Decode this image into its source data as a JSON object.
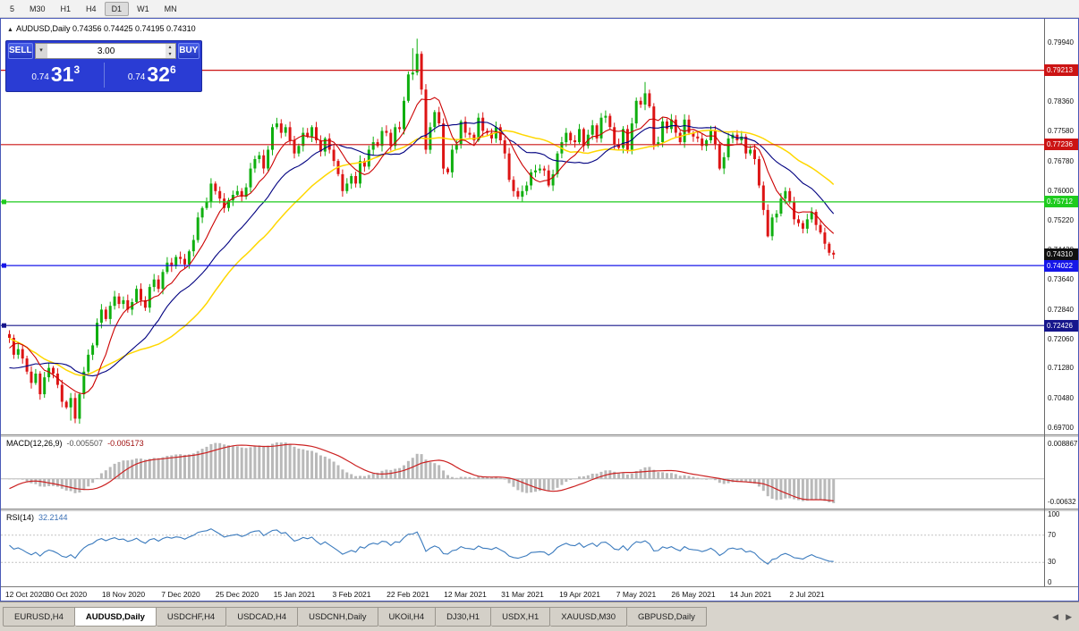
{
  "toolbar": {
    "timeframes": [
      "5",
      "M30",
      "H1",
      "H4",
      "D1",
      "W1",
      "MN"
    ],
    "active": "D1"
  },
  "chart_header": {
    "title": "AUDUSD,Daily 0.74356 0.74425 0.74195 0.74310"
  },
  "trade_panel": {
    "sell_label": "SELL",
    "buy_label": "BUY",
    "volume": "3.00",
    "sell_price": {
      "base": "0.74",
      "big": "31",
      "sup": "3"
    },
    "buy_price": {
      "base": "0.74",
      "big": "32",
      "sup": "6"
    }
  },
  "price_axis": {
    "labels": [
      "0.79940",
      "0.79160",
      "0.78360",
      "0.77580",
      "0.76780",
      "0.76000",
      "0.75220",
      "0.74430",
      "0.73640",
      "0.72840",
      "0.72060",
      "0.71280",
      "0.70480",
      "0.69700"
    ],
    "tags": [
      {
        "label": "0.79213",
        "price": 0.79213,
        "bg": "#cc1414",
        "fg": "#ffffff"
      },
      {
        "label": "0.77236",
        "price": 0.77236,
        "bg": "#cc1414",
        "fg": "#ffffff"
      },
      {
        "label": "0.75712",
        "price": 0.75712,
        "bg": "#1ecb1e",
        "fg": "#ffffff"
      },
      {
        "label": "0.74310",
        "price": 0.7431,
        "bg": "#101010",
        "fg": "#ffffff"
      },
      {
        "label": "0.74022",
        "price": 0.74022,
        "bg": "#1616e8",
        "fg": "#ffffff"
      },
      {
        "label": "0.72426",
        "price": 0.72426,
        "bg": "#16168c",
        "fg": "#ffffff"
      }
    ]
  },
  "hlines": [
    {
      "label": "0.79213",
      "price": 0.79213,
      "color": "#cc1414",
      "handle": false
    },
    {
      "label": "0.77236",
      "price": 0.77236,
      "color": "#cc1414",
      "handle": false
    },
    {
      "label": "0.75712",
      "price": 0.75712,
      "color": "#1ecb1e",
      "handle": true
    },
    {
      "label": "0.74022",
      "price": 0.74022,
      "color": "#1616e8",
      "handle": true
    },
    {
      "label": "0.72426",
      "price": 0.72426,
      "color": "#16168c",
      "handle": true
    }
  ],
  "macd": {
    "name": "MACD(12,26,9)",
    "value_main": "-0.005507",
    "value_signal": "-0.005173",
    "scale_top": "0.008867",
    "scale_bottom": "-0.00632"
  },
  "rsi": {
    "name": "RSI(14)",
    "value": "32.2144",
    "scale": [
      "100",
      "70",
      "30",
      "0"
    ]
  },
  "date_axis": {
    "labels": [
      {
        "text": "12 Oct 2020",
        "index": 0
      },
      {
        "text": "30 Oct 2020",
        "index": 13
      },
      {
        "text": "18 Nov 2020",
        "index": 26
      },
      {
        "text": "7 Dec 2020",
        "index": 39
      },
      {
        "text": "25 Dec 2020",
        "index": 52
      },
      {
        "text": "15 Jan 2021",
        "index": 65
      },
      {
        "text": "3 Feb 2021",
        "index": 78
      },
      {
        "text": "22 Feb 2021",
        "index": 91
      },
      {
        "text": "12 Mar 2021",
        "index": 104
      },
      {
        "text": "31 Mar 2021",
        "index": 117
      },
      {
        "text": "19 Apr 2021",
        "index": 130
      },
      {
        "text": "7 May 2021",
        "index": 143
      },
      {
        "text": "26 May 2021",
        "index": 156
      },
      {
        "text": "14 Jun 2021",
        "index": 169
      },
      {
        "text": "2 Jul 2021",
        "index": 182
      }
    ]
  },
  "tabs": {
    "items": [
      "EURUSD,H4",
      "AUDUSD,Daily",
      "USDCHF,H4",
      "USDCAD,H4",
      "USDCNH,Daily",
      "UKOil,H4",
      "DJ30,H1",
      "USDX,H1",
      "XAUUSD,M30",
      "GBPUSD,Daily"
    ],
    "active": "AUDUSD,Daily"
  },
  "chart_data": {
    "type": "candlestick",
    "symbol": "AUDUSD",
    "timeframe": "Daily",
    "ohlc_current": {
      "open": 0.74356,
      "high": 0.74425,
      "low": 0.74195,
      "close": 0.7431
    },
    "colors": {
      "up": "#0faf0f",
      "down": "#dd1414",
      "ma_fast": "#cc0000",
      "ma_mid": "#000080",
      "ma_slow": "#ffd700",
      "macd_hist": "#b9b9b9",
      "macd_signal": "#cc2222",
      "rsi_line": "#3a7abd"
    },
    "ma_periods": [
      8,
      20,
      34
    ],
    "prehistory": [
      0.714,
      0.718,
      0.72,
      0.716,
      0.719,
      0.723,
      0.722,
      0.718,
      0.721,
      0.725,
      0.728,
      0.731,
      0.735,
      0.737,
      0.734,
      0.736,
      0.739,
      0.7365,
      0.733,
      0.7345,
      0.737,
      0.731,
      0.728,
      0.724,
      0.729,
      0.727,
      0.723,
      0.719,
      0.716,
      0.711,
      0.707,
      0.703,
      0.7055,
      0.7085,
      0.706,
      0.7105,
      0.713,
      0.7095,
      0.706,
      0.708,
      0.716,
      0.719,
      0.717,
      0.72,
      0.723,
      0.722
    ],
    "closes": [
      0.721,
      0.7165,
      0.718,
      0.7155,
      0.712,
      0.709,
      0.7115,
      0.706,
      0.7105,
      0.713,
      0.7115,
      0.7085,
      0.704,
      0.7025,
      0.705,
      0.6995,
      0.706,
      0.712,
      0.7165,
      0.719,
      0.725,
      0.7285,
      0.726,
      0.7295,
      0.732,
      0.73,
      0.731,
      0.7285,
      0.7305,
      0.734,
      0.731,
      0.729,
      0.7345,
      0.7365,
      0.734,
      0.7385,
      0.741,
      0.74,
      0.7425,
      0.742,
      0.7405,
      0.744,
      0.747,
      0.753,
      0.7555,
      0.757,
      0.762,
      0.76,
      0.758,
      0.7555,
      0.7575,
      0.759,
      0.76,
      0.7585,
      0.761,
      0.766,
      0.7685,
      0.7695,
      0.766,
      0.771,
      0.777,
      0.778,
      0.7755,
      0.777,
      0.7735,
      0.77,
      0.772,
      0.7755,
      0.7745,
      0.777,
      0.7735,
      0.7705,
      0.774,
      0.771,
      0.768,
      0.7645,
      0.76,
      0.762,
      0.764,
      0.762,
      0.768,
      0.7665,
      0.771,
      0.773,
      0.772,
      0.776,
      0.7755,
      0.772,
      0.777,
      0.7765,
      0.784,
      0.791,
      0.7915,
      0.7965,
      0.787,
      0.771,
      0.777,
      0.781,
      0.778,
      0.766,
      0.765,
      0.771,
      0.7725,
      0.7785,
      0.7755,
      0.775,
      0.7735,
      0.7795,
      0.776,
      0.7755,
      0.774,
      0.777,
      0.7735,
      0.77,
      0.763,
      0.76,
      0.7585,
      0.76,
      0.7615,
      0.765,
      0.7655,
      0.766,
      0.7655,
      0.7615,
      0.7645,
      0.77,
      0.773,
      0.7755,
      0.7735,
      0.773,
      0.7765,
      0.772,
      0.775,
      0.7775,
      0.774,
      0.7795,
      0.78,
      0.777,
      0.7725,
      0.7715,
      0.7765,
      0.771,
      0.778,
      0.784,
      0.783,
      0.786,
      0.7825,
      0.7725,
      0.773,
      0.7785,
      0.7765,
      0.779,
      0.7755,
      0.773,
      0.779,
      0.7755,
      0.7745,
      0.774,
      0.772,
      0.7735,
      0.776,
      0.7725,
      0.766,
      0.769,
      0.774,
      0.775,
      0.7735,
      0.7745,
      0.77,
      0.771,
      0.7685,
      0.7615,
      0.755,
      0.748,
      0.753,
      0.754,
      0.758,
      0.76,
      0.757,
      0.7525,
      0.7515,
      0.75,
      0.7525,
      0.7545,
      0.751,
      0.749,
      0.746,
      0.7436,
      0.7431
    ],
    "wick_overrides": {
      "14": {
        "lo": 0.699
      },
      "15": {
        "lo": 0.6983
      },
      "92": {
        "hi": 0.798
      },
      "93": {
        "hi": 0.8005
      },
      "145": {
        "hi": 0.789
      },
      "173": {
        "lo": 0.7477
      },
      "188": {
        "hi": 0.74425,
        "lo": 0.74195
      }
    }
  }
}
